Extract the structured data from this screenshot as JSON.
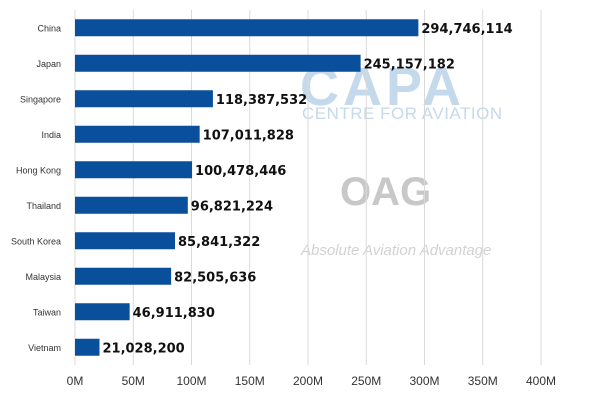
{
  "watermarks": {
    "capa_logo": "CAPA",
    "capa_subtitle": "CENTRE FOR AVIATION",
    "oag_logo": "OAG",
    "oag_tagline": "Absolute Aviation Advantage"
  },
  "colors": {
    "bar": "#0a4f9c",
    "grid": "#d9d9d9"
  },
  "chart_data": {
    "type": "bar",
    "orientation": "horizontal",
    "categories": [
      "China",
      "Japan",
      "Singapore",
      "India",
      "Hong Kong",
      "Thailand",
      "South Korea",
      "Malaysia",
      "Taiwan",
      "Vietnam"
    ],
    "values": [
      294746114,
      245157182,
      118387532,
      107011828,
      100478446,
      96821224,
      85841322,
      82505636,
      46911830,
      21028200
    ],
    "value_labels": [
      "294,746,114",
      "245,157,182",
      "118,387,532",
      "107,011,828",
      "100,478,446",
      "96,821,224",
      "85,841,322",
      "82,505,636",
      "46,911,830",
      "21,028,200"
    ],
    "x_ticks": [
      0,
      50000000,
      100000000,
      150000000,
      200000000,
      250000000,
      300000000,
      350000000,
      400000000
    ],
    "x_tick_labels": [
      "0M",
      "50M",
      "100M",
      "150M",
      "200M",
      "250M",
      "300M",
      "350M",
      "400M"
    ],
    "xlim": [
      0,
      400000000
    ],
    "grid": true,
    "title": "",
    "xlabel": "",
    "ylabel": ""
  }
}
